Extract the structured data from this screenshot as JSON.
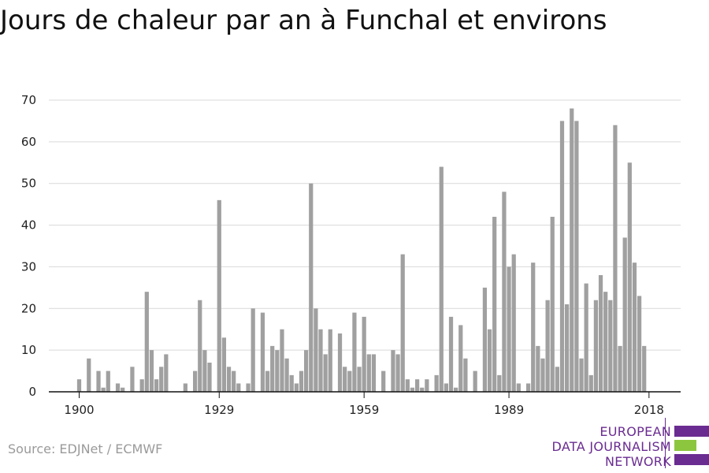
{
  "title": "Jours de chaleur par an à Funchal et environs",
  "source": "Source: EDJNet / ECMWF",
  "brand": {
    "lines": [
      "EUROPEAN",
      "DATA JOURNALISM",
      "NETWORK"
    ],
    "colors": {
      "purple": "#6a2c91",
      "green": "#8cc63f"
    }
  },
  "colors": {
    "bar": "#a0a0a0",
    "grid": "#d9d9d9",
    "axis": "#111111"
  },
  "chart_data": {
    "type": "bar",
    "title": "Jours de chaleur par an à Funchal et environs",
    "xlabel": "",
    "ylabel": "",
    "ylim": [
      0,
      70
    ],
    "yticks": [
      0,
      10,
      20,
      30,
      40,
      50,
      60,
      70
    ],
    "xticks": [
      1900,
      1929,
      1959,
      1989,
      2018
    ],
    "grid": true,
    "x": [
      1900,
      1901,
      1902,
      1903,
      1904,
      1905,
      1906,
      1907,
      1908,
      1909,
      1910,
      1911,
      1912,
      1913,
      1914,
      1915,
      1916,
      1917,
      1918,
      1919,
      1920,
      1921,
      1922,
      1923,
      1924,
      1925,
      1926,
      1927,
      1928,
      1929,
      1930,
      1931,
      1932,
      1933,
      1934,
      1935,
      1936,
      1937,
      1938,
      1939,
      1940,
      1941,
      1942,
      1943,
      1944,
      1945,
      1946,
      1947,
      1948,
      1949,
      1950,
      1951,
      1952,
      1953,
      1954,
      1955,
      1956,
      1957,
      1958,
      1959,
      1960,
      1961,
      1962,
      1963,
      1964,
      1965,
      1966,
      1967,
      1968,
      1969,
      1970,
      1971,
      1972,
      1973,
      1974,
      1975,
      1976,
      1977,
      1978,
      1979,
      1980,
      1981,
      1982,
      1983,
      1984,
      1985,
      1986,
      1987,
      1988,
      1989,
      1990,
      1991,
      1992,
      1993,
      1994,
      1995,
      1996,
      1997,
      1998,
      1999,
      2000,
      2001,
      2002,
      2003,
      2004,
      2005,
      2006,
      2007,
      2008,
      2009,
      2010,
      2011,
      2012,
      2013,
      2014,
      2015,
      2016,
      2017,
      2018
    ],
    "values": [
      3,
      0,
      8,
      0,
      5,
      1,
      5,
      0,
      2,
      1,
      0,
      6,
      0,
      3,
      24,
      10,
      3,
      6,
      9,
      0,
      0,
      0,
      2,
      0,
      5,
      22,
      10,
      7,
      0,
      46,
      13,
      6,
      5,
      2,
      0,
      2,
      20,
      0,
      19,
      5,
      11,
      10,
      15,
      8,
      4,
      2,
      5,
      10,
      50,
      20,
      15,
      9,
      15,
      0,
      14,
      6,
      5,
      19,
      6,
      18,
      9,
      9,
      0,
      5,
      0,
      10,
      9,
      33,
      3,
      1,
      3,
      1,
      3,
      0,
      4,
      54,
      2,
      18,
      1,
      16,
      8,
      0,
      5,
      0,
      25,
      15,
      42,
      4,
      48,
      30,
      33,
      2,
      0,
      2,
      31,
      11,
      8,
      22,
      42,
      6,
      65,
      21,
      68,
      65,
      8,
      26,
      4,
      22,
      28,
      24,
      22,
      64,
      11,
      37,
      55,
      31,
      23,
      11,
      0
    ]
  }
}
